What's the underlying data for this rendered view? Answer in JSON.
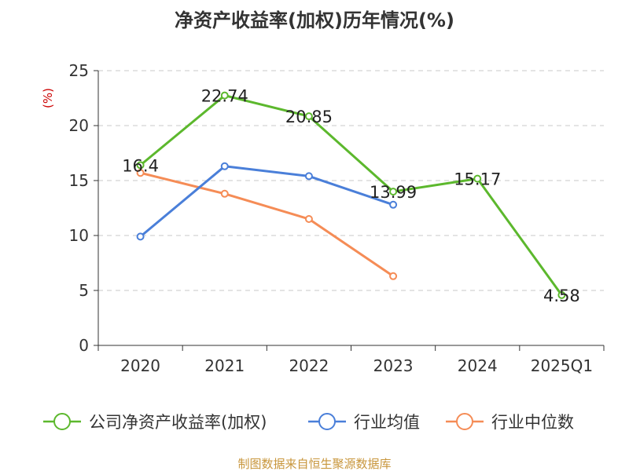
{
  "chart_data": {
    "type": "line",
    "title": "净资产收益率(加权)历年情况(%)",
    "ylabel": "(%)",
    "xlabel": "",
    "categories": [
      "2020",
      "2021",
      "2022",
      "2023",
      "2024",
      "2025Q1"
    ],
    "ylim": [
      0,
      25
    ],
    "yticks": [
      0,
      5,
      10,
      15,
      20,
      25
    ],
    "grid": true,
    "legend_position": "bottom",
    "series": [
      {
        "name": "公司净资产收益率(加权)",
        "color": "#5cb82d",
        "values": [
          16.4,
          22.74,
          20.85,
          13.99,
          15.17,
          4.58
        ],
        "labels": [
          "16.4",
          "22.74",
          "20.85",
          "13.99",
          "15.17",
          "4.58"
        ],
        "show_labels": true
      },
      {
        "name": "行业均值",
        "color": "#4a7fd9",
        "values": [
          9.9,
          16.3,
          15.4,
          12.8,
          null,
          null
        ],
        "show_labels": false
      },
      {
        "name": "行业中位数",
        "color": "#f58c56",
        "values": [
          15.7,
          13.8,
          11.5,
          6.3,
          null,
          null
        ],
        "show_labels": false
      }
    ]
  },
  "source_note": "制图数据来自恒生聚源数据库"
}
